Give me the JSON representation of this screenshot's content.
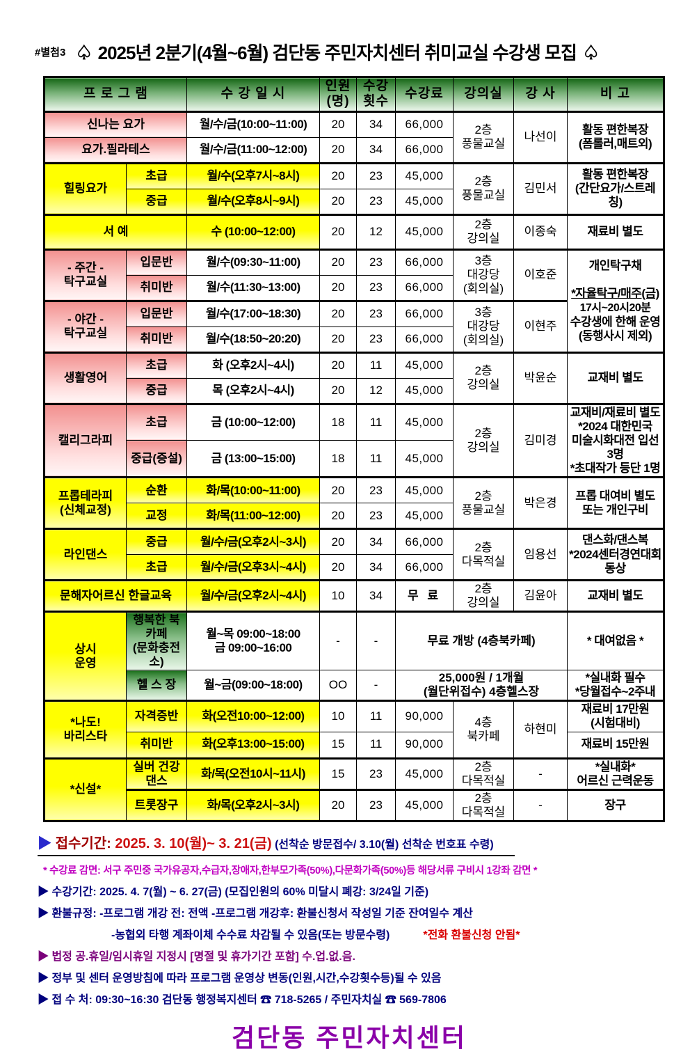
{
  "title": {
    "tag": "#별첨3",
    "spade": "♤",
    "text": "2025년 2분기(4월~6월) 검단동 주민자치센터 취미교실 수강생 모집"
  },
  "colors": {
    "header_green": "#156615",
    "cell_pink": "#f2908f",
    "cell_yellow": "#ffff00",
    "note_navy": "#00007d",
    "note_magenta": "#c000c0",
    "note_purple": "#7a007a",
    "warn_red": "#d90000",
    "footer_purple": "#8a00a8"
  },
  "table": {
    "headers": [
      {
        "t": "프 로 그 램",
        "c": 2
      },
      {
        "t": "수 강 일 시"
      },
      {
        "t": "인원\n(명)"
      },
      {
        "t": "수강\n횟수"
      },
      {
        "t": "수강료"
      },
      {
        "t": "강의실"
      },
      {
        "t": "강 사"
      },
      {
        "t": "비  고"
      }
    ],
    "rows": [
      [
        {
          "t": "신나는 요가",
          "c": 2,
          "k": "pink prog"
        },
        {
          "t": "월/수/금(10:00~11:00)",
          "k": "sched"
        },
        {
          "t": "20",
          "k": "num"
        },
        {
          "t": "34",
          "k": "num"
        },
        {
          "t": "66,000",
          "k": "fee"
        },
        {
          "t": "2층\n풍물교실",
          "r": 2,
          "k": "room"
        },
        {
          "t": "나선이",
          "r": 2,
          "k": "teacher"
        },
        {
          "t": "활동 편한복장\n(폼롤러,매트외)",
          "r": 2,
          "k": "note"
        }
      ],
      [
        {
          "t": "요가.필라테스",
          "c": 2,
          "k": "pink prog"
        },
        {
          "t": "월/수/금(11:00~12:00)",
          "k": "sched"
        },
        {
          "t": "20",
          "k": "num"
        },
        {
          "t": "34",
          "k": "num"
        },
        {
          "t": "66,000",
          "k": "fee"
        }
      ],
      [
        {
          "t": "힐링요가",
          "r": 2,
          "k": "yellow prog"
        },
        {
          "t": "초급",
          "k": "yellow lvl"
        },
        {
          "t": "월/수(오후7시~8시)",
          "k": "yellow sched"
        },
        {
          "t": "20",
          "k": "num"
        },
        {
          "t": "23",
          "k": "num"
        },
        {
          "t": "45,000",
          "k": "fee"
        },
        {
          "t": "2층\n풍물교실",
          "r": 2,
          "k": "room"
        },
        {
          "t": "김민서",
          "r": 2,
          "k": "teacher"
        },
        {
          "t": "활동 편한복장\n(간단요가/스트레칭)",
          "r": 2,
          "k": "note"
        }
      ],
      [
        {
          "t": "중급",
          "k": "yellow lvl"
        },
        {
          "t": "월/수(오후8시~9시)",
          "k": "yellow sched"
        },
        {
          "t": "20",
          "k": "num"
        },
        {
          "t": "23",
          "k": "num"
        },
        {
          "t": "45,000",
          "k": "fee"
        }
      ],
      [
        {
          "t": "서   예",
          "c": 2,
          "k": "yellow prog"
        },
        {
          "t": "수 (10:00~12:00)",
          "k": "yellow sched"
        },
        {
          "t": "20",
          "k": "num"
        },
        {
          "t": "12",
          "k": "num"
        },
        {
          "t": "45,000",
          "k": "fee"
        },
        {
          "t": "2층\n강의실",
          "k": "room"
        },
        {
          "t": "이종숙",
          "k": "teacher"
        },
        {
          "t": "재료비 별도",
          "k": "note"
        }
      ],
      [
        {
          "t": "- 주간 -\n탁구교실",
          "r": 2,
          "k": "pink prog"
        },
        {
          "t": "입문반",
          "k": "pink lvl"
        },
        {
          "t": "월/수(09:30~11:00)",
          "k": "sched"
        },
        {
          "t": "20",
          "k": "num"
        },
        {
          "t": "23",
          "k": "num"
        },
        {
          "t": "66,000",
          "k": "fee"
        },
        {
          "t": "3층\n대강당\n(회의실)",
          "r": 2,
          "k": "room"
        },
        {
          "t": "이호준",
          "r": 2,
          "k": "teacher"
        },
        {
          "lines": [
            {
              "t": "개인탁구채"
            },
            {
              "t": ""
            },
            {
              "t": "*자율탁구/매주(금)",
              "u": 1
            },
            {
              "t": "17시~20시20분",
              "b": 1
            },
            {
              "t": "수강생에 한해 운영"
            },
            {
              "t": "(동행사시 제외)"
            }
          ],
          "r": 4,
          "k": "note"
        }
      ],
      [
        {
          "t": "취미반",
          "k": "pink lvl"
        },
        {
          "t": "월/수(11:30~13:00)",
          "k": "sched"
        },
        {
          "t": "20",
          "k": "num"
        },
        {
          "t": "23",
          "k": "num"
        },
        {
          "t": "66,000",
          "k": "fee"
        }
      ],
      [
        {
          "t": "- 야간 -\n탁구교실",
          "r": 2,
          "k": "pink prog"
        },
        {
          "t": "입문반",
          "k": "pink lvl"
        },
        {
          "t": "월/수(17:00~18:30)",
          "k": "sched"
        },
        {
          "t": "20",
          "k": "num"
        },
        {
          "t": "23",
          "k": "num"
        },
        {
          "t": "66,000",
          "k": "fee"
        },
        {
          "t": "3층\n대강당\n(회의실)",
          "r": 2,
          "k": "room"
        },
        {
          "t": "이현주",
          "r": 2,
          "k": "teacher"
        }
      ],
      [
        {
          "t": "취미반",
          "k": "pink lvl"
        },
        {
          "t": "월/수(18:50~20:20)",
          "k": "sched"
        },
        {
          "t": "20",
          "k": "num"
        },
        {
          "t": "23",
          "k": "num"
        },
        {
          "t": "66,000",
          "k": "fee"
        }
      ],
      [
        {
          "t": "생활영어",
          "r": 2,
          "k": "pink prog"
        },
        {
          "t": "초급",
          "k": "pink lvl"
        },
        {
          "t": "화 (오후2시~4시)",
          "k": "sched"
        },
        {
          "t": "20",
          "k": "num"
        },
        {
          "t": "11",
          "k": "num"
        },
        {
          "t": "45,000",
          "k": "fee"
        },
        {
          "t": "2층\n강의실",
          "r": 2,
          "k": "room"
        },
        {
          "t": "박윤순",
          "r": 2,
          "k": "teacher"
        },
        {
          "t": "교재비 별도",
          "r": 2,
          "k": "note"
        }
      ],
      [
        {
          "t": "중급",
          "k": "pink lvl"
        },
        {
          "t": "목 (오후2시~4시)",
          "k": "sched"
        },
        {
          "t": "20",
          "k": "num"
        },
        {
          "t": "12",
          "k": "num"
        },
        {
          "t": "45,000",
          "k": "fee"
        }
      ],
      [
        {
          "t": "캘리그라피",
          "r": 2,
          "k": "pink prog"
        },
        {
          "t": "초급",
          "k": "pink lvl"
        },
        {
          "t": "금 (10:00~12:00)",
          "k": "sched"
        },
        {
          "t": "18",
          "k": "num"
        },
        {
          "t": "11",
          "k": "num"
        },
        {
          "t": "45,000",
          "k": "fee"
        },
        {
          "t": "2층\n강의실",
          "r": 2,
          "k": "room"
        },
        {
          "t": "김미경",
          "r": 2,
          "k": "teacher"
        },
        {
          "t": "교재비/재료비 별도\n*2024 대한민국\n미술시화대전 입선3명\n*초대작가 등단 1명",
          "r": 2,
          "k": "note-sm"
        }
      ],
      [
        {
          "t": "중급(증설)",
          "k": "pink lvl-sm"
        },
        {
          "t": "금 (13:00~15:00)",
          "k": "sched"
        },
        {
          "t": "18",
          "k": "num"
        },
        {
          "t": "11",
          "k": "num"
        },
        {
          "t": "45,000",
          "k": "fee"
        }
      ],
      [
        {
          "t": "프롭테라피\n(신체교정)",
          "r": 2,
          "k": "yellow prog-sm2"
        },
        {
          "t": "순환",
          "k": "yellow lvl"
        },
        {
          "t": "화/목(10:00~11:00)",
          "k": "yellow sched"
        },
        {
          "t": "20",
          "k": "num"
        },
        {
          "t": "23",
          "k": "num"
        },
        {
          "t": "45,000",
          "k": "fee"
        },
        {
          "t": "2층\n풍물교실",
          "r": 2,
          "k": "room"
        },
        {
          "t": "박은경",
          "r": 2,
          "k": "teacher"
        },
        {
          "t": "프롭 대여비 별도\n또는 개인구비",
          "r": 2,
          "k": "note"
        }
      ],
      [
        {
          "t": "교정",
          "k": "yellow lvl"
        },
        {
          "t": "화/목(11:00~12:00)",
          "k": "yellow sched"
        },
        {
          "t": "20",
          "k": "num"
        },
        {
          "t": "23",
          "k": "num"
        },
        {
          "t": "45,000",
          "k": "fee"
        }
      ],
      [
        {
          "t": "라인댄스",
          "r": 2,
          "k": "yellow prog"
        },
        {
          "t": "중급",
          "k": "yellow lvl"
        },
        {
          "t": "월/수/금(오후2시~3시)",
          "k": "yellow sched"
        },
        {
          "t": "20",
          "k": "num"
        },
        {
          "t": "34",
          "k": "num"
        },
        {
          "t": "66,000",
          "k": "fee"
        },
        {
          "t": "2층\n다목적실",
          "r": 2,
          "k": "room"
        },
        {
          "t": "임용선",
          "r": 2,
          "k": "teacher"
        },
        {
          "t": "댄스화/댄스복\n*2024센터경연대회\n동상",
          "r": 2,
          "k": "note"
        }
      ],
      [
        {
          "t": "초급",
          "k": "yellow lvl"
        },
        {
          "t": "월/수/금(오후3시~4시)",
          "k": "yellow sched"
        },
        {
          "t": "20",
          "k": "num"
        },
        {
          "t": "34",
          "k": "num"
        },
        {
          "t": "66,000",
          "k": "fee"
        }
      ],
      [
        {
          "t": "문해자어르신 한글교육",
          "c": 2,
          "k": "yellow prog-sm2"
        },
        {
          "t": "월/수/금(오후2시~4시)",
          "k": "yellow sched"
        },
        {
          "t": "10",
          "k": "num"
        },
        {
          "t": "34",
          "k": "num"
        },
        {
          "t": "무 료",
          "k": "fee-free"
        },
        {
          "t": "2층\n강의실",
          "k": "room"
        },
        {
          "t": "김윤아",
          "k": "teacher"
        },
        {
          "t": "교재비 별도",
          "k": "note"
        }
      ],
      [
        {
          "t": "상시\n운영",
          "r": 2,
          "k": "yellow prog"
        },
        {
          "t": "행복한 북카페\n(문화충전소)",
          "k": "green gname"
        },
        {
          "t": "월~목 09:00~18:00\n금 09:00~16:00",
          "k": "sched"
        },
        {
          "t": "-",
          "k": "num"
        },
        {
          "t": "-",
          "k": "num"
        },
        {
          "t": "무료 개방 (4층북카페)",
          "c": 3,
          "k": "merge-fee"
        },
        {
          "t": "* 대여없음 *",
          "k": "note"
        }
      ],
      [
        {
          "t": "헬 스 장",
          "k": "green gname"
        },
        {
          "t": "월~금(09:00~18:00)",
          "k": "sched"
        },
        {
          "t": "OO",
          "k": "oo"
        },
        {
          "t": "-",
          "k": "num"
        },
        {
          "t": "25,000원 / 1개월\n(월단위접수) 4층헬스장",
          "c": 3,
          "k": "merge-fee"
        },
        {
          "t": "*실내화 필수\n*당월접수~2주내",
          "k": "note-left"
        }
      ],
      [
        {
          "t": "*나도!\n바리스타",
          "r": 2,
          "k": "yellow prog-sm2"
        },
        {
          "t": "자격증반",
          "k": "yellow lvl"
        },
        {
          "t": "화(오전10:00~12:00)",
          "k": "yellow sched"
        },
        {
          "t": "10",
          "k": "num"
        },
        {
          "t": "11",
          "k": "num"
        },
        {
          "t": "90,000",
          "k": "fee"
        },
        {
          "t": "4층\n북카페",
          "r": 2,
          "k": "room"
        },
        {
          "t": "하현미",
          "r": 2,
          "k": "teacher"
        },
        {
          "t": "재료비 17만원\n(시험대비)",
          "k": "note"
        }
      ],
      [
        {
          "t": "취미반",
          "k": "yellow lvl"
        },
        {
          "t": "화(오후13:00~15:00)",
          "k": "yellow sched"
        },
        {
          "t": "15",
          "k": "num"
        },
        {
          "t": "11",
          "k": "num"
        },
        {
          "t": "90,000",
          "k": "fee"
        },
        {
          "t": "재료비 15만원",
          "k": "note"
        }
      ],
      [
        {
          "t": "*신설*",
          "r": 2,
          "k": "yellow prog-sm2"
        },
        {
          "t": "실버 건강댄스",
          "k": "yellow lvl-sm"
        },
        {
          "t": "화/목(오전10시~11시)",
          "k": "yellow sched"
        },
        {
          "t": "15",
          "k": "num"
        },
        {
          "t": "23",
          "k": "num"
        },
        {
          "t": "45,000",
          "k": "fee"
        },
        {
          "t": "2층\n다목적실",
          "k": "room"
        },
        {
          "t": "-",
          "k": "teacher"
        },
        {
          "t": "*실내화*\n어르신 근력운동",
          "k": "note"
        }
      ],
      [
        {
          "t": "트롯장구",
          "k": "yellow lvl"
        },
        {
          "t": "화/목(오후2시~3시)",
          "k": "yellow sched"
        },
        {
          "t": "20",
          "k": "num"
        },
        {
          "t": "23",
          "k": "num"
        },
        {
          "t": "45,000",
          "k": "fee"
        },
        {
          "t": "2층\n다목적실",
          "k": "room"
        },
        {
          "t": "-",
          "k": "teacher"
        },
        {
          "t": "장구",
          "k": "note"
        }
      ]
    ]
  },
  "notes": {
    "arrow": "▶",
    "reception": {
      "label": "접수기간: ",
      "date": "2025. 3. 10(월)~ 3. 21(금)",
      "paren": "  (선착순 방문접수/ 3.10(월) 선착순 번호표 수령)"
    },
    "discount": "* 수강료 감면: 서구 주민중 국가유공자,수급자,장애자,한부모가족(50%),다문화가족(50%)등 해당서류 구비시 1강좌 감면 *",
    "period": "▶ 수강기간: 2025. 4. 7(월) ~ 6. 27(금) (모집인원의 60% 미달시 폐강: 3/24일 기준)",
    "refund1": "▶ 환불규정: -프로그램 개강 전: 전액    -프로그램 개강후: 환불신청서 작성일 기준 잔여일수 계산",
    "refund2": "-농협외 타행 계좌이체 수수료 차감될 수 있음(또는 방문수령)",
    "refund2_warn": "*전화 환불신청 안됨*",
    "holiday": "▶ 법정 공.휴일/임시휴일 지정시 [명절 및 휴가기간 포함] 수.업.없.음.",
    "change": "▶ 정부 및 센터 운영방침에 따라 프로그램 운영상 변동(인원,시간,수강횟수등)될 수 있음",
    "apply": "▶ 접 수 처: 09:30~16:30   검단동 행정복지센터 ☎ 718-5265 / 주민자치실 ☎ 569-7806"
  },
  "footer": {
    "text": "검단동  주민자치센터"
  }
}
